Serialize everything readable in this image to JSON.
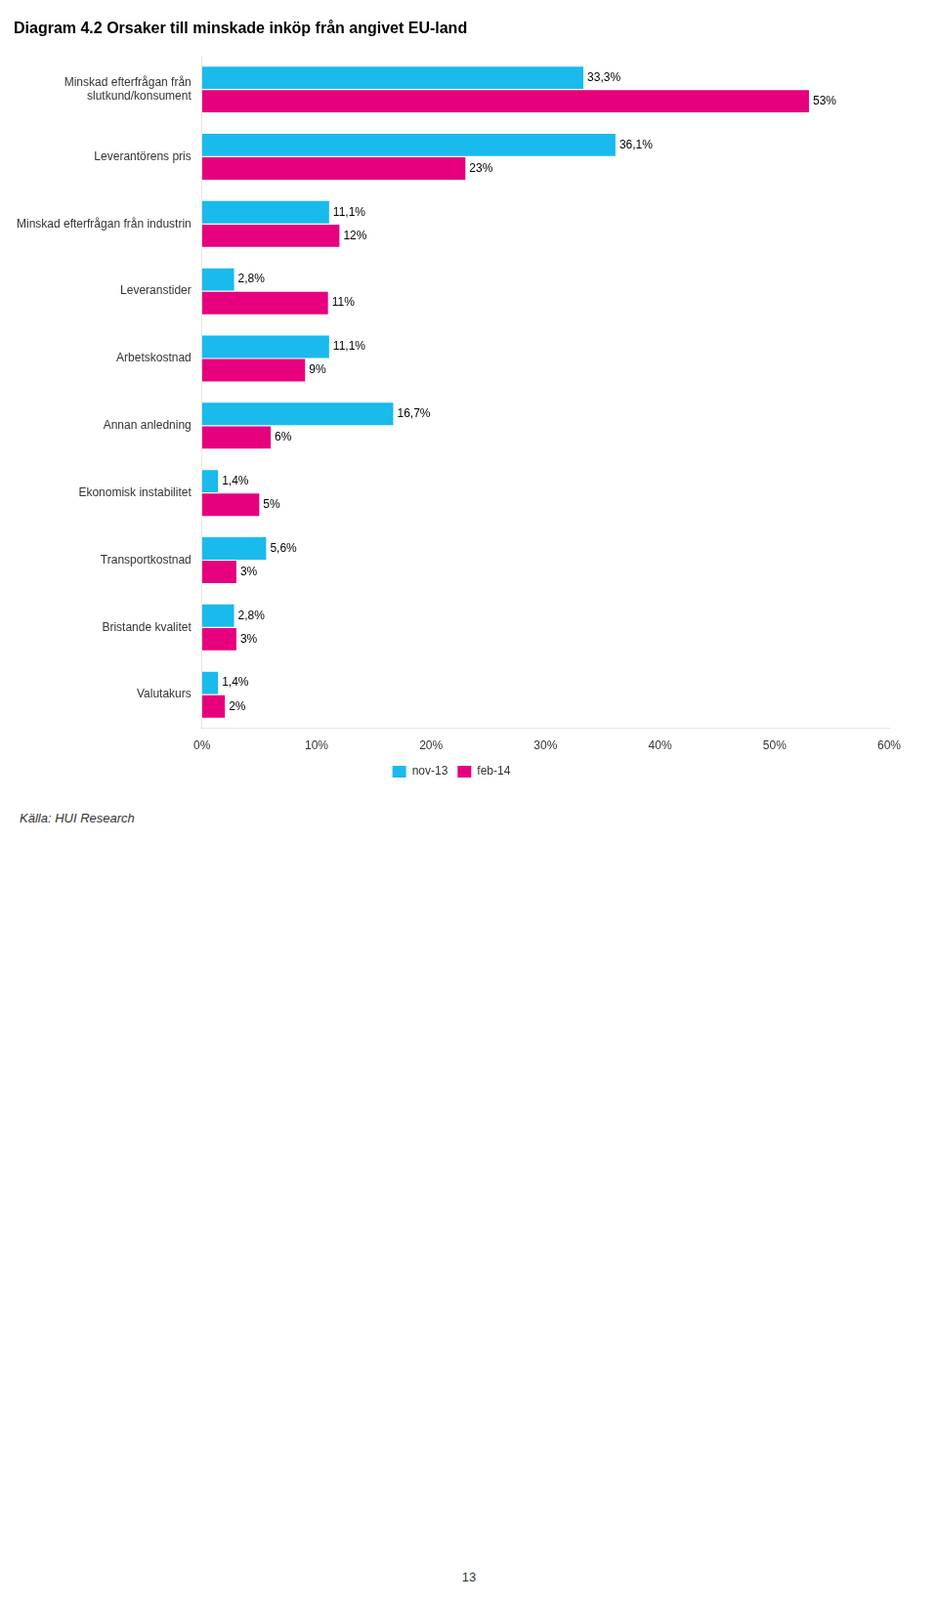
{
  "chart_data": {
    "type": "bar",
    "orientation": "horizontal",
    "title": "Diagram 4.2 Orsaker till minskade inköp från angivet EU-land",
    "categories": [
      "Minskad efterfrågan från\nslutkund/konsument",
      "Leverantörens pris",
      "Minskad efterfrågan från industrin",
      "Leveranstider",
      "Arbetskostnad",
      "Annan anledning",
      "Ekonomisk instabilitet",
      "Transportkostnad",
      "Bristande kvalitet",
      "Valutakurs"
    ],
    "series": [
      {
        "name": "nov-13",
        "color": "#1ABAED",
        "values": [
          33.3,
          36.1,
          11.1,
          2.8,
          11.1,
          16.7,
          1.4,
          5.6,
          2.8,
          1.4
        ],
        "value_labels": [
          "33,3%",
          "36,1%",
          "11,1%",
          "2,8%",
          "11,1%",
          "16,7%",
          "1,4%",
          "5,6%",
          "2,8%",
          "1,4%"
        ]
      },
      {
        "name": "feb-14",
        "color": "#E6007E",
        "values": [
          53.0,
          23.0,
          12.0,
          11.0,
          9.0,
          6.0,
          5.0,
          3.0,
          3.0,
          2.0
        ],
        "value_labels": [
          "53%",
          "23%",
          "12%",
          "11%",
          "9%",
          "6%",
          "5%",
          "3%",
          "3%",
          "2%"
        ]
      }
    ],
    "xlim": [
      0,
      60
    ],
    "xticks": [
      {
        "value": 0,
        "label": "0%"
      },
      {
        "value": 10,
        "label": "10%"
      },
      {
        "value": 20,
        "label": "20%"
      },
      {
        "value": 30,
        "label": "30%"
      },
      {
        "value": 40,
        "label": "40%"
      },
      {
        "value": 50,
        "label": "50%"
      },
      {
        "value": 60,
        "label": "60%"
      }
    ],
    "data_labels": true,
    "grid": false,
    "legend": "bottom",
    "annotations": [
      "Källa: HUI Research",
      "13"
    ]
  }
}
